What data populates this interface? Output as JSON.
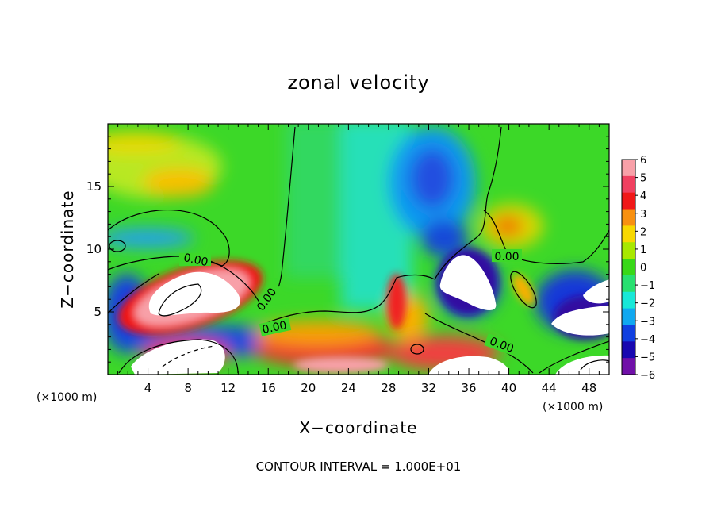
{
  "chart_data": {
    "type": "heatmap",
    "title": "zonal velocity",
    "xlabel": "X−coordinate",
    "ylabel": "Z−coordinate",
    "x_unit_left": "(×1000 m)",
    "x_unit_right": "(×1000 m)",
    "footer": "CONTOUR INTERVAL = 1.000E+01",
    "xlim": [
      0,
      50
    ],
    "ylim": [
      0,
      20
    ],
    "x_ticks": [
      "4",
      "8",
      "12",
      "16",
      "20",
      "24",
      "28",
      "32",
      "36",
      "40",
      "44",
      "48"
    ],
    "x_tick_values": [
      4,
      8,
      12,
      16,
      20,
      24,
      28,
      32,
      36,
      40,
      44,
      48
    ],
    "y_ticks": [
      "5",
      "10",
      "15"
    ],
    "y_tick_values": [
      5,
      10,
      15
    ],
    "contour_labels": [
      {
        "text": "0.00",
        "x": 8.5,
        "z": 9.0
      },
      {
        "text": "0.00",
        "x": 16.0,
        "z": 5.8
      },
      {
        "text": "0.00",
        "x": 16.8,
        "z": 3.6
      },
      {
        "text": "0.00",
        "x": 39.5,
        "z": 9.5
      },
      {
        "text": "0.00",
        "x": 39.0,
        "z": 2.5
      }
    ],
    "colorbar": {
      "levels": [
        6,
        5,
        4,
        3,
        2,
        1,
        0,
        -1,
        -2,
        -3,
        -4,
        -5,
        -6
      ],
      "labels": [
        "6",
        "5",
        "4",
        "3",
        "2",
        "1",
        "0",
        "−1",
        "−2",
        "−3",
        "−4",
        "−5",
        "−6"
      ],
      "colors": [
        "#f8a0a8",
        "#f04060",
        "#f01818",
        "#f89010",
        "#f8d800",
        "#a8e800",
        "#38d818",
        "#28e070",
        "#18e8d8",
        "#10a8f0",
        "#1040e0",
        "#1808b0",
        "#7010a8"
      ]
    },
    "field_features": [
      {
        "kind": "negative",
        "x": 33,
        "z": 15.5,
        "strength": -4
      },
      {
        "kind": "negative",
        "x": 31,
        "z": 12,
        "strength": -3
      },
      {
        "kind": "positive",
        "x": 40,
        "z": 12,
        "strength": 3
      },
      {
        "kind": "positive",
        "x": 8.5,
        "z": 15,
        "strength": 3
      },
      {
        "kind": "positive",
        "x": 6,
        "z": 18,
        "strength": 2
      },
      {
        "kind": "positive",
        "x": 8,
        "z": 6,
        "strength": 6
      },
      {
        "kind": "negative",
        "x": 35,
        "z": 7.5,
        "strength": -6
      },
      {
        "kind": "negative",
        "x": 47,
        "z": 5,
        "strength": -6
      },
      {
        "kind": "positive",
        "x": 20,
        "z": 2.5,
        "strength": 4
      },
      {
        "kind": "positive",
        "x": 30,
        "z": 3.5,
        "strength": 4
      }
    ]
  },
  "colors": {
    "background": "#ffffff",
    "axes": "#000000",
    "contour": "#000000"
  }
}
